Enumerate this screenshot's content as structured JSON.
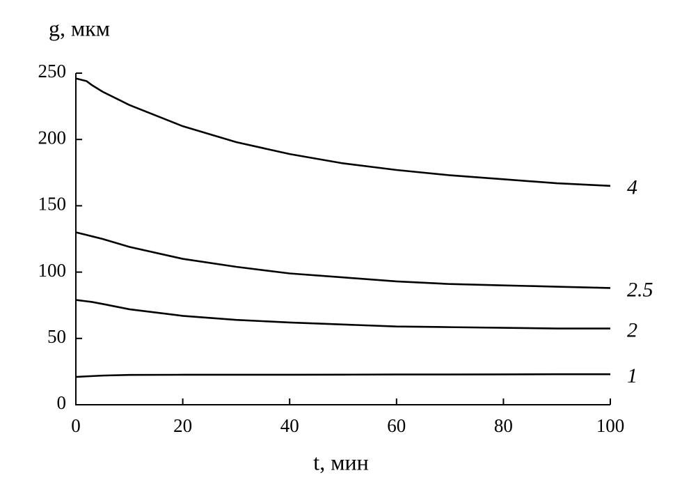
{
  "chart_data": {
    "type": "line",
    "x_label": "t, мин",
    "y_label": "g, мкм",
    "x": [
      0,
      2,
      3,
      5,
      10,
      20,
      30,
      40,
      50,
      60,
      70,
      80,
      90,
      100
    ],
    "series": [
      {
        "name": "4",
        "color": "#000000",
        "values": [
          246,
          244,
          241,
          236,
          226,
          210,
          198,
          189,
          182,
          177,
          173,
          170,
          167,
          165
        ]
      },
      {
        "name": "2.5",
        "color": "#000000",
        "values": [
          130,
          128,
          127,
          125,
          119,
          110,
          104,
          99,
          96,
          93,
          91,
          90,
          89,
          88
        ]
      },
      {
        "name": "2",
        "color": "#000000",
        "values": [
          79,
          78,
          77.5,
          76,
          72,
          67,
          64,
          62,
          60.5,
          59,
          58.5,
          58,
          57.5,
          57.5
        ]
      },
      {
        "name": "1",
        "color": "#000000",
        "values": [
          21,
          21.4,
          21.6,
          22,
          22.5,
          22.6,
          22.6,
          22.6,
          22.7,
          22.8,
          22.8,
          22.9,
          23,
          23
        ]
      }
    ],
    "xlim": [
      0,
      100
    ],
    "ylim": [
      0,
      250
    ],
    "xticks": [
      0,
      20,
      40,
      60,
      80,
      100
    ],
    "yticks": [
      0,
      50,
      100,
      150,
      200,
      250
    ]
  }
}
